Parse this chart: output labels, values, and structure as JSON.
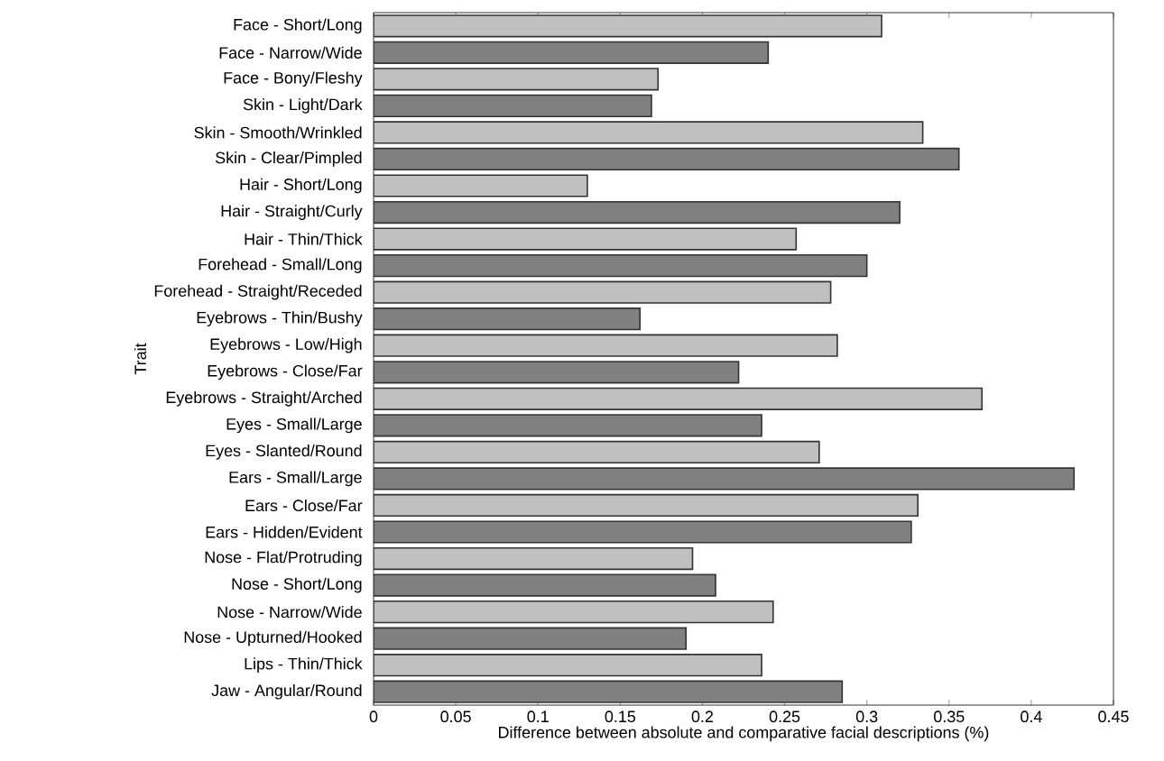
{
  "chart_data": {
    "type": "bar",
    "orientation": "horizontal",
    "xlabel": "Difference between absolute and comparative facial descriptions (%)",
    "ylabel": "Trait",
    "categories": [
      "Face - Short/Long",
      "Face - Narrow/Wide",
      "Face - Bony/Fleshy",
      "Skin - Light/Dark",
      "Skin - Smooth/Wrinkled",
      "Skin - Clear/Pimpled",
      "Hair - Short/Long",
      "Hair - Straight/Curly",
      "Hair - Thin/Thick",
      "Forehead - Small/Long",
      "Forehead - Straight/Receded",
      "Eyebrows - Thin/Bushy",
      "Eyebrows - Low/High",
      "Eyebrows - Close/Far",
      "Eyebrows - Straight/Arched",
      "Eyes - Small/Large",
      "Eyes - Slanted/Round",
      "Ears - Small/Large",
      "Ears - Close/Far",
      "Ears - Hidden/Evident",
      "Nose - Flat/Protruding",
      "Nose - Short/Long",
      "Nose - Narrow/Wide",
      "Nose - Upturned/Hooked",
      "Lips - Thin/Thick",
      "Jaw - Angular/Round"
    ],
    "values": [
      0.309,
      0.24,
      0.173,
      0.169,
      0.334,
      0.356,
      0.13,
      0.32,
      0.257,
      0.3,
      0.278,
      0.162,
      0.282,
      0.222,
      0.37,
      0.236,
      0.271,
      0.426,
      0.331,
      0.327,
      0.194,
      0.208,
      0.243,
      0.19,
      0.236,
      0.285
    ],
    "colors": [
      "#c0c0c0",
      "#808080",
      "#c0c0c0",
      "#808080",
      "#c0c0c0",
      "#808080",
      "#c0c0c0",
      "#808080",
      "#c0c0c0",
      "#808080",
      "#c0c0c0",
      "#808080",
      "#c0c0c0",
      "#808080",
      "#c0c0c0",
      "#808080",
      "#c0c0c0",
      "#808080",
      "#c0c0c0",
      "#808080",
      "#c0c0c0",
      "#808080",
      "#c0c0c0",
      "#808080",
      "#c0c0c0",
      "#808080"
    ],
    "xlim": [
      0,
      0.45
    ],
    "xticks": [
      0,
      0.05,
      0.1,
      0.15,
      0.2,
      0.25,
      0.3,
      0.35,
      0.4,
      0.45
    ],
    "grid": false
  }
}
